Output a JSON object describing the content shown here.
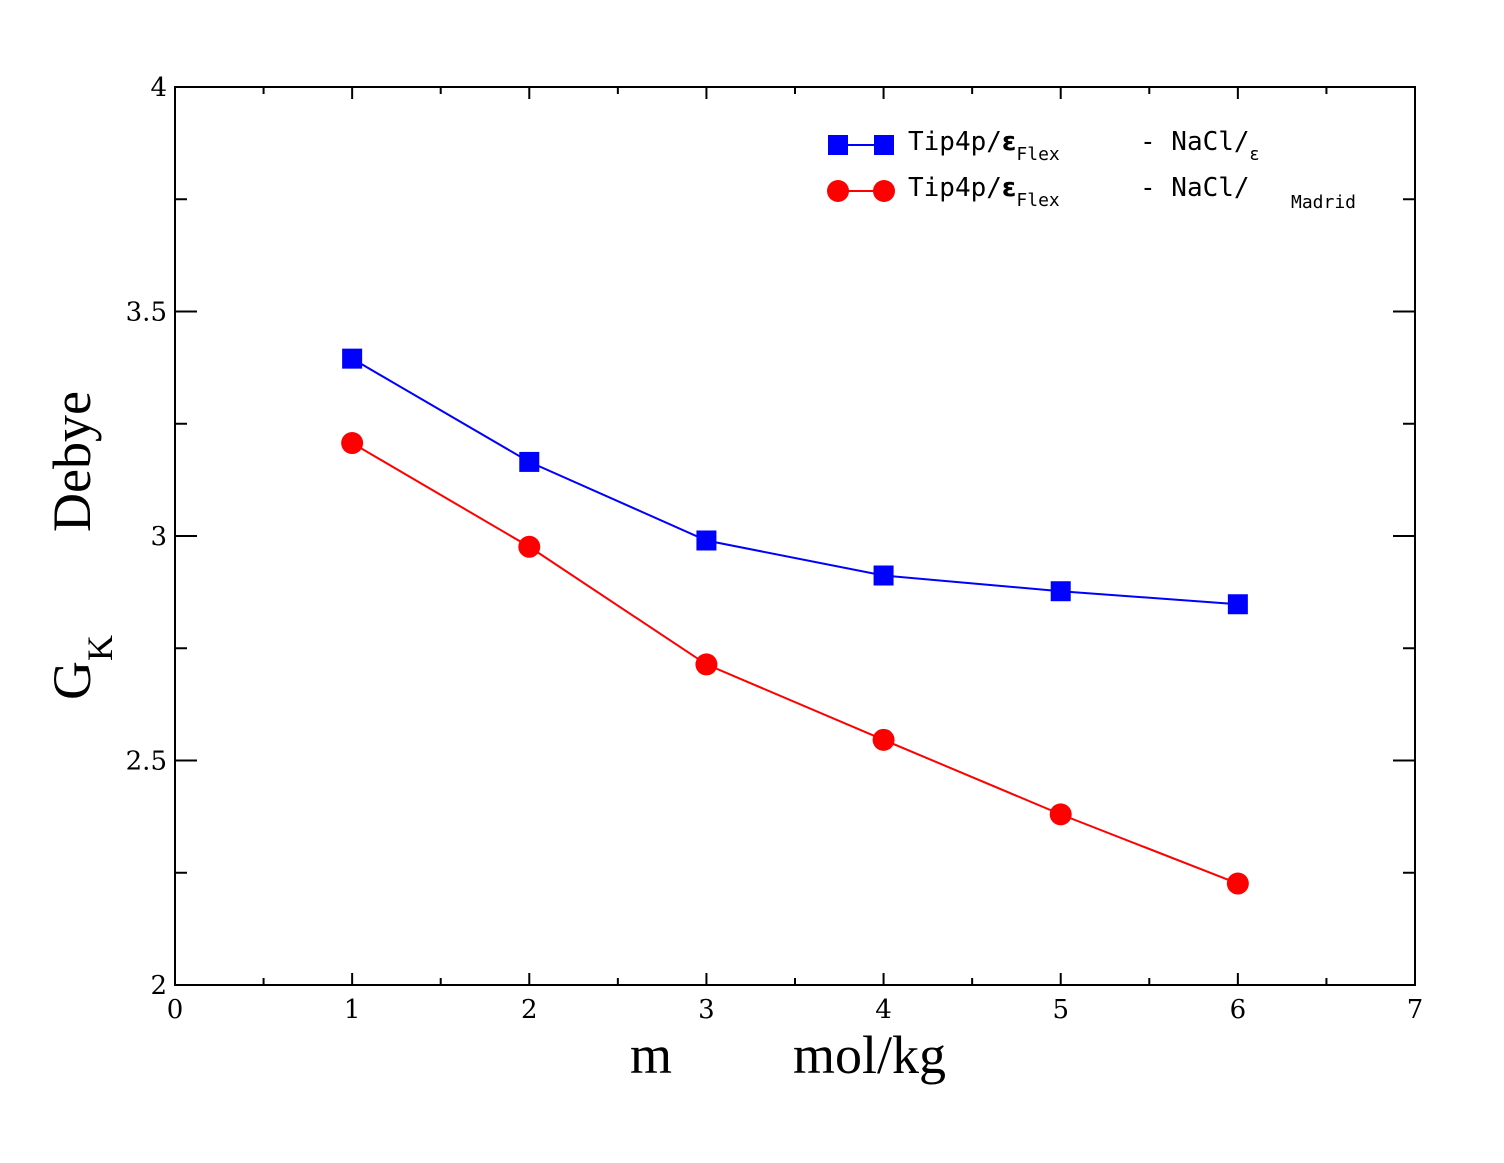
{
  "chart_data": {
    "type": "line",
    "title": "",
    "xlabel": {
      "main": "m",
      "unit": "mol/kg"
    },
    "ylabel": {
      "main": "G",
      "sub": "K",
      "unit": "Debye"
    },
    "xlim": [
      0,
      7
    ],
    "ylim": [
      2,
      4
    ],
    "x_ticks": [
      "0",
      "1",
      "2",
      "3",
      "4",
      "5",
      "6",
      "7"
    ],
    "y_ticks": [
      "2",
      "2.5",
      "3",
      "3.5",
      "4"
    ],
    "x_tick_values": [
      0,
      1,
      2,
      3,
      4,
      5,
      6,
      7
    ],
    "y_tick_values": [
      2,
      2.5,
      3,
      3.5,
      4
    ],
    "x": [
      1,
      2,
      3,
      4,
      5,
      6
    ],
    "legend_position": "top-right",
    "series": [
      {
        "name": "Tip4p/εFlex - NaCl/ε",
        "label_parts": [
          "Tip4p/",
          "ε",
          "Flex",
          "- NaCl/",
          "ε"
        ],
        "marker": "square",
        "color": "#0000ff",
        "values": [
          3.395,
          3.165,
          2.99,
          2.912,
          2.877,
          2.848
        ]
      },
      {
        "name": "Tip4p/εFlex - NaCl/Madrid",
        "label_parts": [
          "Tip4p/",
          "ε",
          "Flex",
          "- NaCl/",
          "Madrid"
        ],
        "marker": "circle",
        "color": "#ff0000",
        "values": [
          3.207,
          2.976,
          2.714,
          2.546,
          2.38,
          2.226
        ]
      }
    ]
  }
}
